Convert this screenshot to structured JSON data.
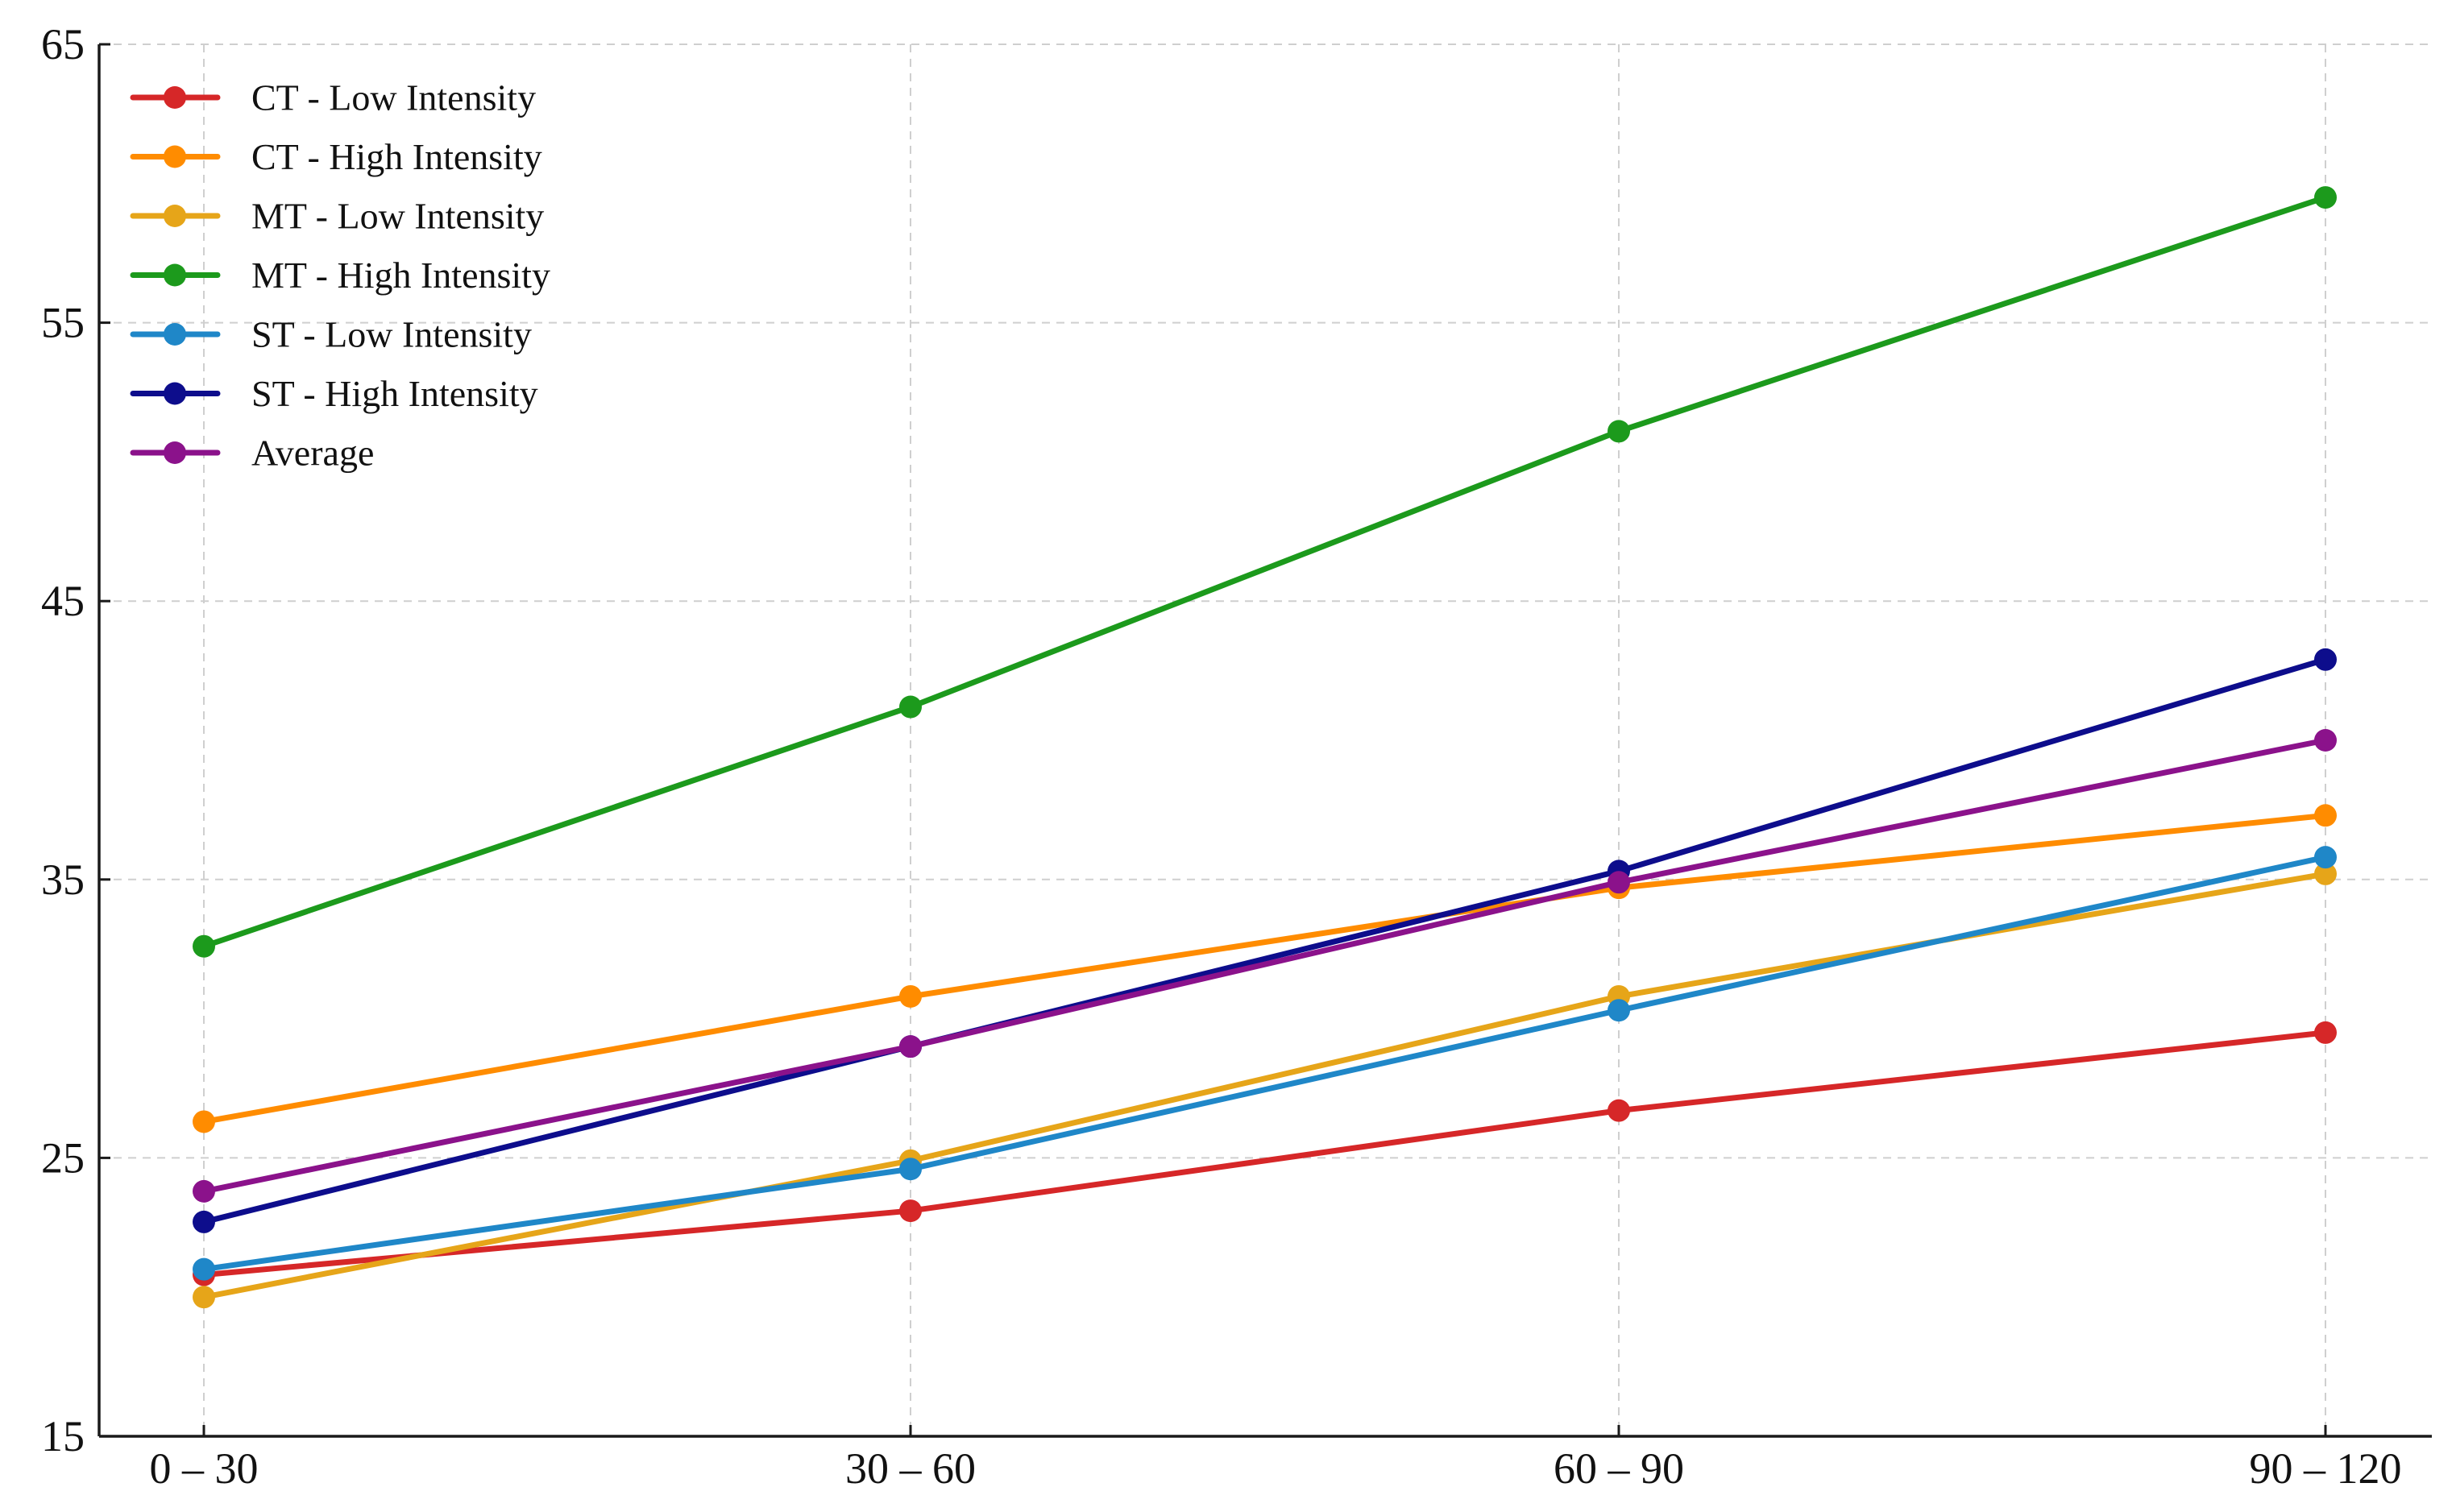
{
  "chart_data": {
    "type": "line",
    "title": "",
    "xlabel": "",
    "ylabel": "",
    "categories": [
      "0 – 30",
      "30 – 60",
      "60 – 90",
      "90 – 120"
    ],
    "ylim": [
      15,
      65
    ],
    "yticks": [
      15,
      25,
      35,
      45,
      55,
      65
    ],
    "grid": true,
    "legend_position": "top-left",
    "series": [
      {
        "name": "CT - Low Intensity",
        "color": "#d62728",
        "values": [
          20.8,
          23.1,
          26.7,
          29.5
        ]
      },
      {
        "name": "CT - High Intensity",
        "color": "#ff8c00",
        "values": [
          26.3,
          30.8,
          34.7,
          37.3
        ]
      },
      {
        "name": "MT - Low Intensity",
        "color": "#e6a519",
        "values": [
          20.0,
          24.9,
          30.8,
          35.2
        ]
      },
      {
        "name": "MT - High Intensity",
        "color": "#1c9a1c",
        "values": [
          32.6,
          41.2,
          51.1,
          59.5
        ]
      },
      {
        "name": "ST - Low Intensity",
        "color": "#1f87c8",
        "values": [
          21.0,
          24.6,
          30.3,
          35.8
        ]
      },
      {
        "name": "ST - High Intensity",
        "color": "#0d0d8c",
        "values": [
          22.7,
          29.0,
          35.3,
          42.9
        ]
      },
      {
        "name": "Average",
        "color": "#8b128b",
        "values": [
          23.8,
          29.0,
          34.9,
          40.0
        ]
      }
    ]
  }
}
